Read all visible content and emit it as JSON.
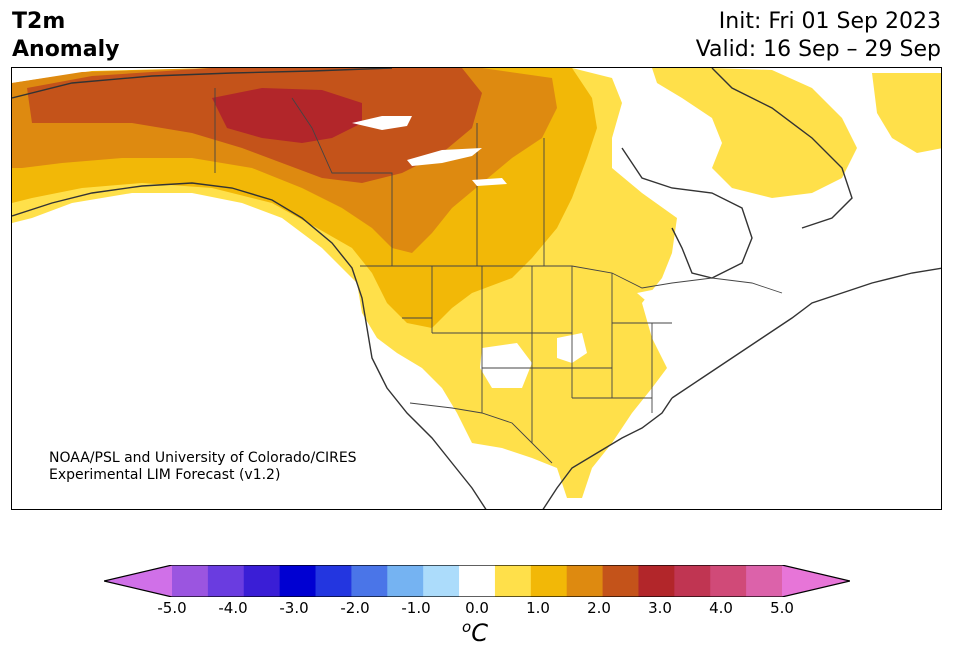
{
  "title": {
    "variable": "T2m",
    "subtitle": "Anomaly",
    "init": "Init: Fri 01 Sep 2023",
    "valid": "Valid: 16 Sep – 29 Sep"
  },
  "credit": {
    "line1": "NOAA/PSL and University of Colorado/CIRES",
    "line2": "Experimental LIM Forecast (v1.2)"
  },
  "colorbar": {
    "units_base": "C",
    "units_sup": "o",
    "ticks": [
      "-5.0",
      "-4.0",
      "-3.0",
      "-2.0",
      "-1.0",
      "0.0",
      "1.0",
      "2.0",
      "3.0",
      "4.0",
      "5.0"
    ],
    "levels": [
      -5.0,
      -4.5,
      -4.0,
      -3.5,
      -3.0,
      -2.5,
      -2.0,
      -1.5,
      -1.0,
      -0.5,
      0.5,
      1.0,
      1.5,
      2.0,
      2.5,
      3.0,
      3.5,
      4.0,
      4.5,
      5.0
    ],
    "colors": [
      "#d070e8",
      "#9b55e0",
      "#6a3ce0",
      "#3a1ed6",
      "#0000d2",
      "#2336e0",
      "#4a75e8",
      "#75b3f2",
      "#acdcfb",
      "#ffffff",
      "#ffe04a",
      "#f2b807",
      "#de8a10",
      "#c4531a",
      "#b2262a",
      "#c03552",
      "#d04a78",
      "#dc62aa",
      "#e775d8"
    ]
  },
  "map": {
    "region": "North America",
    "colors": {
      "ocean": "#ffffff",
      "coast": "#333333",
      "c1": "#ffe04a",
      "c2": "#f2b807",
      "c3": "#de8a10",
      "c4": "#c4531a",
      "c5": "#b2262a"
    }
  }
}
